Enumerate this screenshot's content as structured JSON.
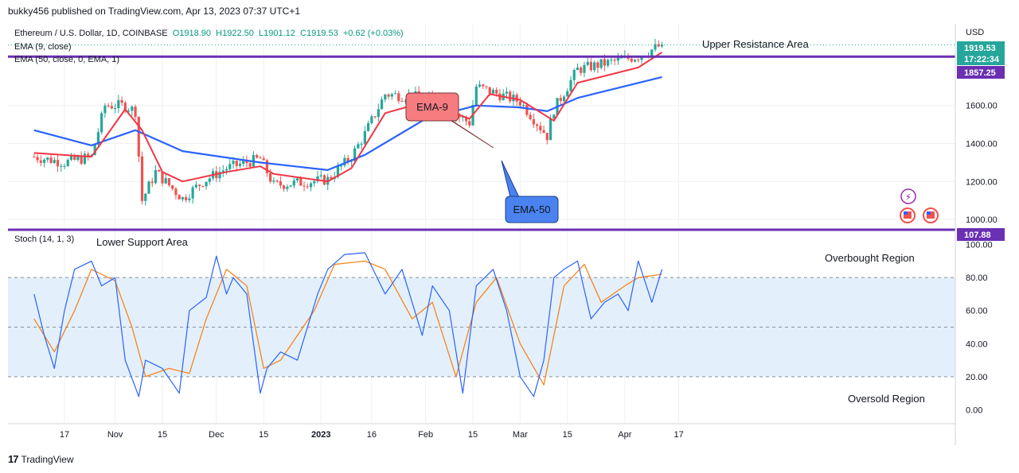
{
  "header": {
    "published": "bukky456 published on TradingView.com, Apr 13, 2023 07:37 UTC+1"
  },
  "footer": {
    "brand": "TradingView",
    "logo_text": "17"
  },
  "legend": {
    "symbol": "Ethereum / U.S. Dollar, 1D, COINBASE",
    "open": "O1918.90",
    "high": "H1922.50",
    "low": "L1901.12",
    "close": "C1919.53",
    "change": "+0.62 (+0.03%)",
    "ema9": "EMA (9, close)",
    "ema50": "EMA (50, close, 0, EMA, 1)",
    "stoch": "Stoch (14, 1, 3)"
  },
  "colors": {
    "up": "#26a69a",
    "down": "#ef5350",
    "ema9": "#f23645",
    "ema50": "#2962ff",
    "k": "#2962ff",
    "d": "#f7841b",
    "purple": "#6a2fb3",
    "band": "#e3f0fb",
    "grid": "#eef0f3"
  },
  "annotations": {
    "upper": "Upper Resistance Area",
    "lower": "Lower Support Area",
    "ema9_label": "EMA-9",
    "ema50_label": "EMA-50",
    "overbought": "Overbought Region",
    "oversold": "Oversold Region"
  },
  "price_axis": {
    "currency": "USD",
    "ticks": [
      "1000.00",
      "1200.00",
      "1400.00",
      "1600.00"
    ]
  },
  "stoch_axis": {
    "ticks": [
      "0.00",
      "20.00",
      "40.00",
      "60.00",
      "80.00",
      "100.00"
    ]
  },
  "badges": {
    "last_price": "1919.53",
    "countdown": "17:22:34",
    "resistance": "1857.25",
    "stoch_level": "107.88"
  },
  "x_axis": {
    "labels": [
      "17",
      "Nov",
      "15",
      "Dec",
      "15",
      "2023",
      "16",
      "Feb",
      "15",
      "Mar",
      "15",
      "Apr",
      "17"
    ]
  },
  "chart_data": [
    {
      "type": "candlestick",
      "title": "Ethereum / U.S. Dollar, 1D, COINBASE",
      "ylabel": "USD",
      "ylim": [
        950,
        2030
      ],
      "resistance_level": 1857.25,
      "anchor_points": {
        "dates": [
          "Oct 8",
          "Oct 17",
          "Oct 25",
          "Oct 29",
          "Nov 4",
          "Nov 7",
          "Nov 9",
          "Nov 13",
          "Nov 21",
          "Nov 27",
          "Dec 4",
          "Dec 14",
          "Dec 18",
          "Dec 29",
          "Jan 3",
          "Jan 10",
          "Jan 14",
          "Jan 20",
          "Feb 1",
          "Feb 14",
          "Feb 16",
          "Mar 1",
          "Mar 9",
          "Mar 11",
          "Mar 18",
          "Apr 5",
          "Apr 12"
        ],
        "close": [
          1330,
          1300,
          1330,
          1600,
          1600,
          1570,
          1100,
          1250,
          1110,
          1200,
          1270,
          1320,
          1180,
          1200,
          1210,
          1330,
          1450,
          1660,
          1640,
          1510,
          1700,
          1620,
          1440,
          1580,
          1790,
          1860,
          1919.53
        ]
      },
      "ema9": {
        "dates": [
          "Oct 8",
          "Oct 25",
          "Nov 4",
          "Nov 9",
          "Nov 15",
          "Nov 21",
          "Dec 4",
          "Dec 14",
          "Dec 18",
          "Jan 3",
          "Jan 10",
          "Jan 20",
          "Feb 1",
          "Feb 14",
          "Feb 20",
          "Mar 1",
          "Mar 11",
          "Mar 18",
          "Apr 5",
          "Apr 12"
        ],
        "values": [
          1350,
          1330,
          1580,
          1470,
          1250,
          1200,
          1250,
          1280,
          1240,
          1200,
          1270,
          1560,
          1620,
          1530,
          1660,
          1630,
          1520,
          1720,
          1800,
          1880
        ]
      },
      "ema50": {
        "dates": [
          "Oct 8",
          "Oct 25",
          "Nov 7",
          "Nov 21",
          "Dec 14",
          "Jan 3",
          "Jan 14",
          "Feb 1",
          "Feb 16",
          "Mar 1",
          "Mar 9",
          "Mar 18",
          "Apr 12"
        ],
        "values": [
          1470,
          1390,
          1470,
          1360,
          1300,
          1260,
          1340,
          1530,
          1600,
          1590,
          1570,
          1640,
          1750
        ]
      }
    },
    {
      "type": "line",
      "title": "Stoch (14, 1, 3)",
      "ylim": [
        -8,
        108
      ],
      "bands": {
        "upper": 80,
        "middle": 50,
        "lower": 20
      },
      "series": [
        {
          "name": "%K",
          "dates": [
            "Oct 8",
            "Oct 11",
            "Oct 14",
            "Oct 17",
            "Oct 20",
            "Oct 25",
            "Oct 28",
            "Nov 1",
            "Nov 4",
            "Nov 8",
            "Nov 10",
            "Nov 15",
            "Nov 20",
            "Nov 23",
            "Nov 28",
            "Dec 1",
            "Dec 4",
            "Dec 6",
            "Dec 10",
            "Dec 14",
            "Dec 16",
            "Dec 20",
            "Dec 25",
            "Dec 31",
            "Jan 3",
            "Jan 8",
            "Jan 14",
            "Jan 20",
            "Jan 25",
            "Jan 31",
            "Feb 3",
            "Feb 8",
            "Feb 12",
            "Feb 16",
            "Feb 21",
            "Feb 25",
            "Mar 1",
            "Mar 5",
            "Mar 8",
            "Mar 11",
            "Mar 14",
            "Mar 18",
            "Mar 22",
            "Mar 26",
            "Mar 30",
            "Apr 2",
            "Apr 5",
            "Apr 9",
            "Apr 12"
          ],
          "values": [
            70,
            45,
            25,
            60,
            85,
            90,
            75,
            80,
            30,
            8,
            30,
            25,
            10,
            60,
            68,
            93,
            70,
            80,
            70,
            10,
            25,
            35,
            30,
            70,
            85,
            94,
            95,
            70,
            85,
            45,
            75,
            60,
            10,
            75,
            85,
            60,
            20,
            8,
            30,
            80,
            85,
            90,
            55,
            65,
            70,
            60,
            90,
            65,
            85
          ]
        },
        {
          "name": "%D",
          "dates": [
            "Oct 8",
            "Oct 14",
            "Oct 20",
            "Oct 25",
            "Nov 1",
            "Nov 6",
            "Nov 10",
            "Nov 17",
            "Nov 23",
            "Nov 28",
            "Dec 4",
            "Dec 10",
            "Dec 15",
            "Dec 20",
            "Dec 30",
            "Jan 5",
            "Jan 14",
            "Jan 20",
            "Jan 28",
            "Feb 3",
            "Feb 10",
            "Feb 16",
            "Feb 22",
            "Mar 1",
            "Mar 8",
            "Mar 14",
            "Mar 20",
            "Mar 25",
            "Apr 1",
            "Apr 5",
            "Apr 12"
          ],
          "values": [
            55,
            35,
            60,
            85,
            78,
            50,
            20,
            25,
            22,
            55,
            85,
            75,
            25,
            30,
            60,
            88,
            90,
            85,
            55,
            65,
            20,
            65,
            80,
            40,
            15,
            75,
            88,
            65,
            75,
            80,
            82
          ]
        }
      ]
    }
  ]
}
